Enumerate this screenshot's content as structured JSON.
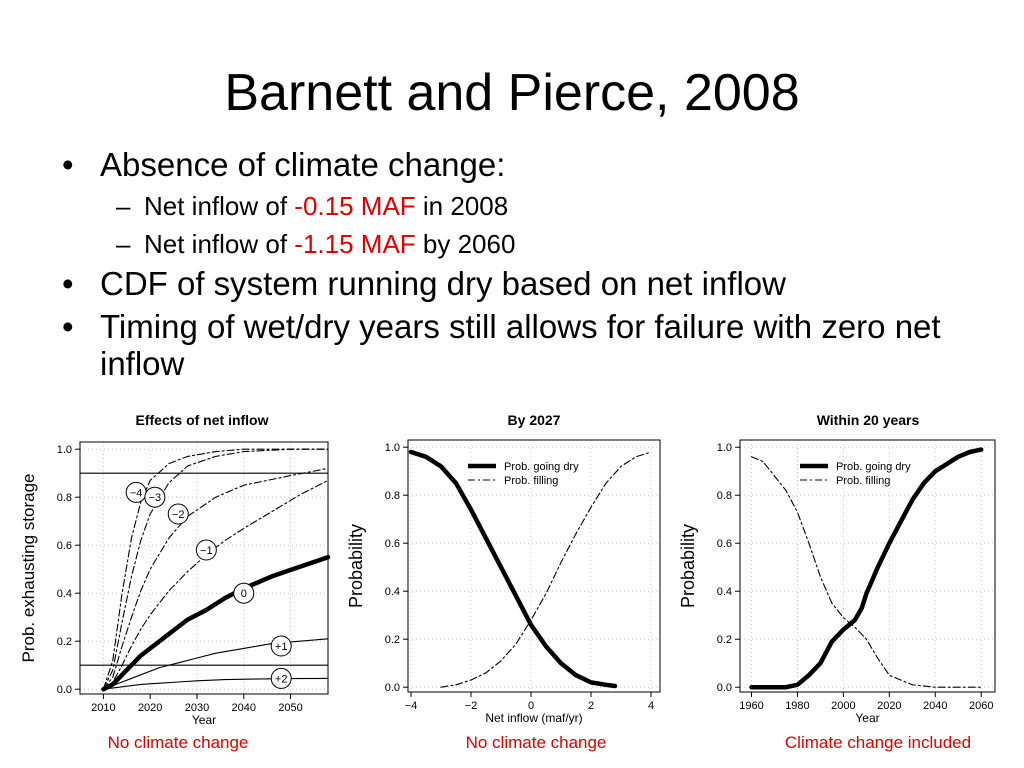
{
  "slide": {
    "title": "Barnett and Pierce, 2008",
    "bullets": [
      {
        "text": "Absence of climate change:",
        "subs": [
          {
            "pre": "Net inflow of ",
            "hl": "-0.15 MAF",
            "post": " in 2008"
          },
          {
            "pre": "Net inflow of ",
            "hl": "-1.15 MAF",
            "post": " by 2060"
          }
        ]
      },
      {
        "text": "CDF of system running dry based on net inflow"
      },
      {
        "text": "Timing of wet/dry years still allows for failure with zero net inflow"
      }
    ],
    "bullet_glyph": "•",
    "sub_glyph": "–",
    "captions": [
      "No climate change",
      "No climate change",
      "Climate change included"
    ],
    "highlight_color": "#e00000"
  },
  "chart_data": [
    {
      "type": "line",
      "title": "Effects of net inflow",
      "xlabel": "Year",
      "ylabel": "Prob. exhausting storage",
      "xlim": [
        2005,
        2058
      ],
      "ylim": [
        -0.02,
        1.03
      ],
      "xticks": [
        2010,
        2020,
        2030,
        2040,
        2050
      ],
      "yticks": [
        0.0,
        0.2,
        0.4,
        0.6,
        0.8,
        1.0
      ],
      "ytick_labels": [
        "0.0",
        "0.2",
        "0.4",
        "0.6",
        "0.8",
        "1.0"
      ],
      "grid": true,
      "hlines": [
        0.9,
        0.1
      ],
      "series": [
        {
          "name": "−4",
          "style": "dashdot",
          "x": [
            2010,
            2012,
            2014,
            2016,
            2018,
            2020,
            2024,
            2028,
            2034,
            2040,
            2050,
            2058
          ],
          "y": [
            0,
            0.12,
            0.4,
            0.63,
            0.78,
            0.87,
            0.94,
            0.97,
            0.99,
            1.0,
            1.0,
            1.0
          ],
          "label_at": [
            2017,
            0.82
          ]
        },
        {
          "name": "−3",
          "style": "dashdot",
          "x": [
            2010,
            2012,
            2014,
            2016,
            2018,
            2020,
            2024,
            2028,
            2034,
            2040,
            2050,
            2058
          ],
          "y": [
            0,
            0.08,
            0.28,
            0.47,
            0.62,
            0.73,
            0.86,
            0.93,
            0.97,
            0.99,
            1.0,
            1.0
          ],
          "label_at": [
            2021,
            0.8
          ]
        },
        {
          "name": "−2",
          "style": "dashdot",
          "x": [
            2010,
            2012,
            2014,
            2016,
            2018,
            2020,
            2024,
            2028,
            2034,
            2040,
            2050,
            2058
          ],
          "y": [
            0,
            0.05,
            0.18,
            0.3,
            0.41,
            0.5,
            0.63,
            0.72,
            0.8,
            0.85,
            0.89,
            0.92
          ],
          "label_at": [
            2026,
            0.73
          ]
        },
        {
          "name": "−1",
          "style": "dashdot",
          "x": [
            2010,
            2012,
            2014,
            2016,
            2018,
            2020,
            2024,
            2028,
            2032,
            2036,
            2040,
            2046,
            2052,
            2058
          ],
          "y": [
            0,
            0.03,
            0.1,
            0.18,
            0.25,
            0.31,
            0.41,
            0.49,
            0.56,
            0.62,
            0.67,
            0.74,
            0.81,
            0.87
          ],
          "label_at": [
            2032,
            0.58
          ]
        },
        {
          "name": "0",
          "style": "thick",
          "x": [
            2010,
            2012,
            2014,
            2016,
            2018,
            2020,
            2024,
            2028,
            2032,
            2036,
            2040,
            2046,
            2052,
            2058
          ],
          "y": [
            0,
            0.02,
            0.06,
            0.1,
            0.14,
            0.17,
            0.23,
            0.29,
            0.33,
            0.38,
            0.42,
            0.47,
            0.51,
            0.55
          ],
          "label_at": [
            2040,
            0.4
          ]
        },
        {
          "name": "+1",
          "style": "thin",
          "x": [
            2010,
            2014,
            2018,
            2022,
            2026,
            2030,
            2034,
            2040,
            2046,
            2052,
            2058
          ],
          "y": [
            0,
            0.03,
            0.06,
            0.09,
            0.11,
            0.13,
            0.15,
            0.17,
            0.19,
            0.2,
            0.21
          ],
          "label_at": [
            2048,
            0.18
          ]
        },
        {
          "name": "+2",
          "style": "thin",
          "x": [
            2010,
            2014,
            2018,
            2022,
            2026,
            2030,
            2036,
            2042,
            2050,
            2058
          ],
          "y": [
            0,
            0.01,
            0.02,
            0.025,
            0.03,
            0.035,
            0.04,
            0.042,
            0.044,
            0.045
          ],
          "label_at": [
            2048,
            0.045
          ]
        }
      ]
    },
    {
      "type": "line",
      "title": "By 2027",
      "xlabel": "Net inflow (maf/yr)",
      "ylabel": "Probability",
      "xlim": [
        -4.1,
        4.3
      ],
      "ylim": [
        -0.02,
        1.03
      ],
      "xticks": [
        -4,
        -2,
        0,
        2,
        4
      ],
      "xtick_labels": [
        "−4",
        "−2",
        "0",
        "2",
        "4"
      ],
      "yticks": [
        0.0,
        0.2,
        0.4,
        0.6,
        0.8,
        1.0
      ],
      "ytick_labels": [
        "0.0",
        "0.2",
        "0.4",
        "0.6",
        "0.8",
        "1.0"
      ],
      "grid": true,
      "legend": "top-right",
      "series": [
        {
          "name": "Prob. going dry",
          "style": "thick",
          "x": [
            -4,
            -3.5,
            -3,
            -2.5,
            -2,
            -1.5,
            -1,
            -0.5,
            0,
            0.5,
            1,
            1.5,
            2,
            2.5,
            2.8
          ],
          "y": [
            0.98,
            0.96,
            0.92,
            0.85,
            0.74,
            0.62,
            0.5,
            0.38,
            0.26,
            0.17,
            0.1,
            0.05,
            0.02,
            0.01,
            0.005
          ]
        },
        {
          "name": "Prob. filling",
          "style": "dashdot",
          "x": [
            -3,
            -2.5,
            -2,
            -1.5,
            -1,
            -0.5,
            0,
            0.5,
            1,
            1.5,
            2,
            2.5,
            3,
            3.5,
            4
          ],
          "y": [
            0,
            0.01,
            0.03,
            0.06,
            0.11,
            0.18,
            0.28,
            0.39,
            0.52,
            0.64,
            0.75,
            0.85,
            0.92,
            0.96,
            0.98
          ]
        }
      ]
    },
    {
      "type": "line",
      "title": "Within 20 years",
      "xlabel": "Year",
      "ylabel": "Probability",
      "xlim": [
        1955,
        2066
      ],
      "ylim": [
        -0.02,
        1.03
      ],
      "xticks": [
        1960,
        1980,
        2000,
        2020,
        2040,
        2060
      ],
      "yticks": [
        0.0,
        0.2,
        0.4,
        0.6,
        0.8,
        1.0
      ],
      "ytick_labels": [
        "0.0",
        "0.2",
        "0.4",
        "0.6",
        "0.8",
        "1.0"
      ],
      "grid": true,
      "legend": "top-right",
      "series": [
        {
          "name": "Prob. going dry",
          "style": "thick",
          "x": [
            1960,
            1970,
            1975,
            1980,
            1985,
            1990,
            1995,
            2000,
            2005,
            2008,
            2010,
            2015,
            2020,
            2025,
            2030,
            2035,
            2040,
            2045,
            2050,
            2055,
            2060
          ],
          "y": [
            0,
            0,
            0,
            0.01,
            0.05,
            0.1,
            0.19,
            0.24,
            0.28,
            0.33,
            0.39,
            0.5,
            0.6,
            0.69,
            0.78,
            0.85,
            0.9,
            0.93,
            0.96,
            0.98,
            0.99
          ]
        },
        {
          "name": "Prob. filling",
          "style": "dashdot",
          "x": [
            1960,
            1965,
            1970,
            1975,
            1980,
            1985,
            1990,
            1995,
            2000,
            2005,
            2010,
            2015,
            2020,
            2030,
            2040,
            2050,
            2060
          ],
          "y": [
            0.96,
            0.94,
            0.88,
            0.82,
            0.73,
            0.6,
            0.46,
            0.35,
            0.29,
            0.25,
            0.2,
            0.12,
            0.05,
            0.01,
            0,
            0,
            0
          ]
        }
      ]
    }
  ]
}
